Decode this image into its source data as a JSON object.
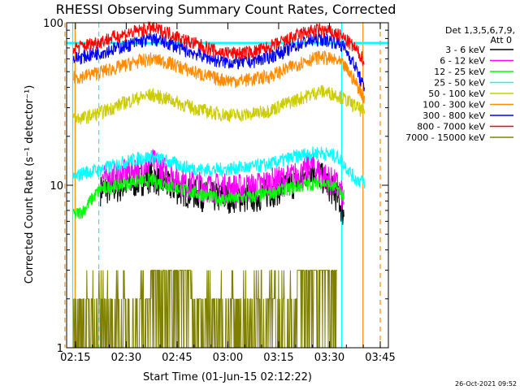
{
  "chart_data": {
    "type": "line",
    "title": "RHESSI Observing Summary Count Rates, Corrected",
    "xlabel": "Start Time (01-Jun-15 02:12:22)",
    "ylabel": "Corrected Count Rate (s⁻¹ detector⁻¹)",
    "yscale": "log",
    "ylim": [
      1,
      100
    ],
    "xlim_minutes": [
      0,
      95
    ],
    "x_tick_labels": [
      "02:15",
      "02:30",
      "02:45",
      "03:00",
      "03:15",
      "03:30",
      "03:45"
    ],
    "x_tick_minutes": [
      2.6,
      17.6,
      32.6,
      47.6,
      62.6,
      77.6,
      92.6
    ],
    "y_tick_labels": [
      "1",
      "10",
      "100"
    ],
    "y_tick_values": [
      1,
      10,
      100
    ],
    "legend_title_line1": "Det 1,3,5,6,7,9,",
    "legend_title_line2": "Att 0",
    "legend_position": "right",
    "footer_date": "26-Oct-2021 09:52",
    "series": [
      {
        "name": "3 - 6 keV",
        "color": "#000000",
        "x": [
          10,
          15,
          20,
          25,
          30,
          35,
          40,
          45,
          50,
          55,
          60,
          65,
          70,
          72,
          76,
          80,
          82
        ],
        "y": [
          9.5,
          9.8,
          10.5,
          11.5,
          10.0,
          9.3,
          8.8,
          8.5,
          8.6,
          8.5,
          9.2,
          10.0,
          11.0,
          13.0,
          11.0,
          8.5,
          6.5
        ]
      },
      {
        "name": "6 - 12 keV",
        "color": "#ff00ff",
        "x": [
          10,
          15,
          20,
          25,
          30,
          35,
          40,
          45,
          50,
          55,
          60,
          65,
          70,
          72,
          76,
          80,
          82
        ],
        "y": [
          11.0,
          11.5,
          12.5,
          14.0,
          12.0,
          10.5,
          10.0,
          9.8,
          9.7,
          9.8,
          10.5,
          11.0,
          12.0,
          13.5,
          11.5,
          10.0,
          8.0
        ]
      },
      {
        "name": "12 - 25 keV",
        "color": "#00ff00",
        "x": [
          2,
          5,
          10,
          15,
          20,
          25,
          30,
          35,
          40,
          45,
          50,
          55,
          60,
          65,
          70,
          75,
          80,
          82
        ],
        "y": [
          6.5,
          7.0,
          9.5,
          10.0,
          10.5,
          10.8,
          10.0,
          9.3,
          8.8,
          8.2,
          8.3,
          8.5,
          9.0,
          9.5,
          10.0,
          10.5,
          9.5,
          8.5
        ]
      },
      {
        "name": "25 - 50 keV",
        "color": "#00ffff",
        "x": [
          2,
          5,
          10,
          15,
          20,
          25,
          30,
          35,
          40,
          45,
          50,
          55,
          60,
          65,
          70,
          75,
          80,
          85,
          88
        ],
        "y": [
          11.0,
          12.0,
          12.5,
          13.5,
          14.5,
          15.0,
          14.0,
          13.0,
          12.5,
          12.5,
          12.8,
          13.0,
          13.5,
          14.5,
          15.5,
          16.0,
          15.0,
          11.0,
          10.5
        ]
      },
      {
        "name": "50 - 100 keV",
        "color": "#cccc00",
        "x": [
          2,
          5,
          10,
          15,
          20,
          25,
          30,
          35,
          40,
          45,
          50,
          55,
          60,
          65,
          70,
          75,
          80,
          82,
          85,
          88
        ],
        "y": [
          26,
          26,
          28,
          31,
          34,
          36,
          34,
          31,
          29,
          27.5,
          27,
          27.5,
          29,
          32,
          35,
          38,
          36,
          34,
          31,
          28
        ]
      },
      {
        "name": "100 - 300 keV",
        "color": "#ff8c00",
        "x": [
          2,
          5,
          10,
          15,
          20,
          25,
          30,
          35,
          40,
          45,
          50,
          55,
          60,
          65,
          70,
          75,
          80,
          82,
          85,
          88
        ],
        "y": [
          46,
          47,
          50,
          53,
          57,
          60,
          57,
          52,
          48,
          45,
          44,
          45,
          47,
          52,
          58,
          62,
          58,
          54,
          44,
          34
        ]
      },
      {
        "name": "300 - 800 keV",
        "color": "#0000ff",
        "x": [
          2,
          5,
          10,
          15,
          20,
          25,
          30,
          35,
          40,
          45,
          50,
          55,
          60,
          65,
          70,
          75,
          80,
          82,
          85,
          88
        ],
        "y": [
          60,
          62,
          66,
          70,
          75,
          80,
          75,
          68,
          63,
          58,
          57,
          58,
          62,
          68,
          76,
          80,
          76,
          70,
          55,
          38
        ]
      },
      {
        "name": "800 - 7000 keV",
        "color": "#ff0000",
        "x": [
          2,
          5,
          10,
          15,
          20,
          25,
          30,
          35,
          40,
          45,
          50,
          55,
          60,
          65,
          70,
          75,
          80,
          82,
          85,
          88
        ],
        "y": [
          70,
          72,
          77,
          83,
          88,
          93,
          87,
          78,
          72,
          66,
          65,
          66,
          71,
          78,
          87,
          91,
          85,
          80,
          70,
          58
        ]
      },
      {
        "name": "7000 - 15000 keV",
        "color": "#808000",
        "x": [
          2,
          10,
          15,
          20,
          25,
          30,
          35,
          40,
          45,
          50,
          55,
          60,
          65,
          70,
          75,
          80
        ],
        "y": [
          1.5,
          1.5,
          1.6,
          1.8,
          2.2,
          2.6,
          2.4,
          1.8,
          1.5,
          1.5,
          1.5,
          1.6,
          1.9,
          2.4,
          2.6,
          2.2
        ]
      }
    ]
  }
}
